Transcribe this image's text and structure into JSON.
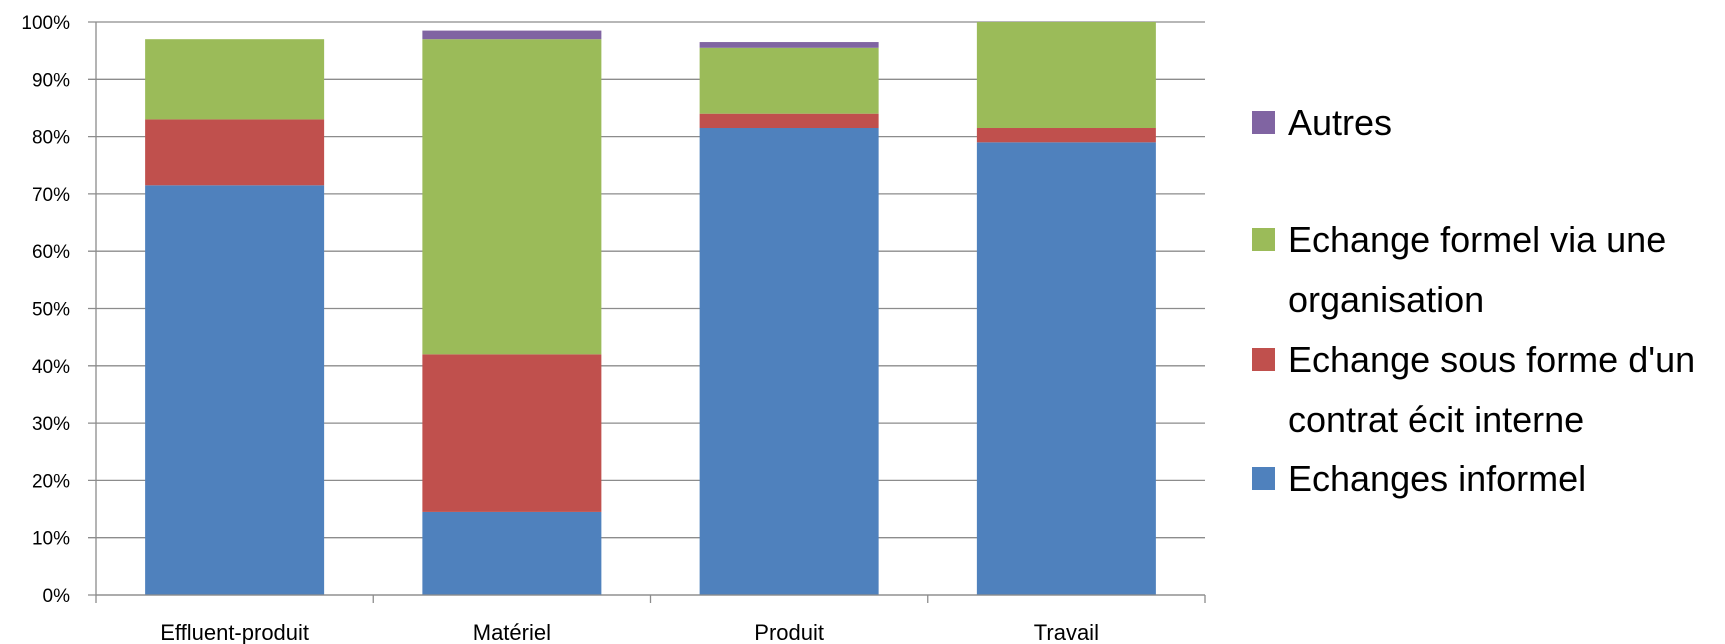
{
  "chart_data": {
    "type": "bar",
    "stacked": true,
    "percent": true,
    "categories": [
      "Effluent-produit",
      "Matériel",
      "Produit",
      "Travail"
    ],
    "ylim": [
      0,
      100
    ],
    "yticks": [
      "0%",
      "10%",
      "20%",
      "30%",
      "40%",
      "50%",
      "60%",
      "70%",
      "80%",
      "90%",
      "100%"
    ],
    "grid": true,
    "legend_position": "right",
    "series": [
      {
        "name": "Echanges informel",
        "color": "#4F81BD",
        "values": [
          71.5,
          14.5,
          81.5,
          79
        ]
      },
      {
        "name": "Echange sous forme d'un contrat écit interne",
        "color": "#C0504D",
        "values": [
          11.5,
          27.5,
          2.5,
          2.5
        ]
      },
      {
        "name": "Echange formel via une organisation",
        "color": "#9BBB59",
        "values": [
          14,
          55,
          11.5,
          18.5
        ]
      },
      {
        "name": "Autres",
        "color": "#8064A2",
        "values": [
          0,
          1.5,
          1,
          0
        ]
      }
    ],
    "legend": [
      {
        "lines": [
          "Autres"
        ],
        "color": "#8064A2"
      },
      {
        "lines": [
          "Echange formel via une",
          "organisation"
        ],
        "color": "#9BBB59"
      },
      {
        "lines": [
          "Echange sous forme d'un",
          "contrat écit interne"
        ],
        "color": "#C0504D"
      },
      {
        "lines": [
          "Echanges informel"
        ],
        "color": "#4F81BD"
      }
    ]
  }
}
